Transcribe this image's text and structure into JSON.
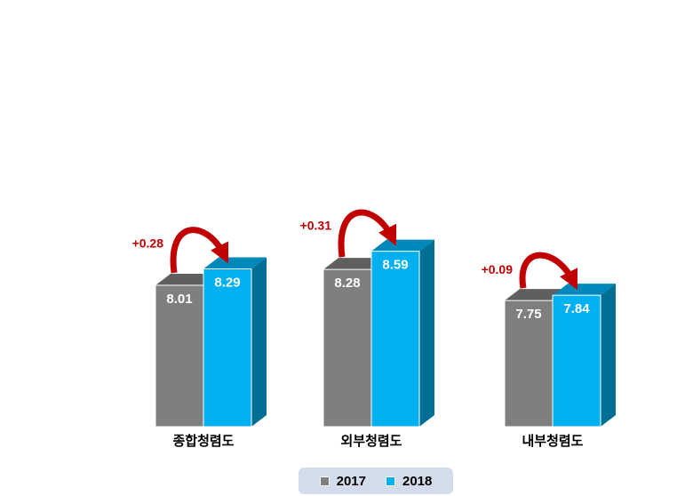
{
  "chart_data": {
    "type": "bar",
    "style": "3d-clustered",
    "categories": [
      "종합청렴도",
      "외부청렴도",
      "내부청렴도"
    ],
    "series": [
      {
        "name": "2017",
        "values": [
          8.01,
          8.28,
          7.75
        ],
        "color": "#7f7f7f"
      },
      {
        "name": "2018",
        "values": [
          8.29,
          8.59,
          7.84
        ],
        "color": "#00b0f0"
      }
    ],
    "annotations": [
      "+0.28",
      "+0.31",
      "+0.09"
    ],
    "annotation_color": "#c00000",
    "ylim": [
      5.6,
      10
    ],
    "grid": false,
    "legend_position": "bottom"
  }
}
